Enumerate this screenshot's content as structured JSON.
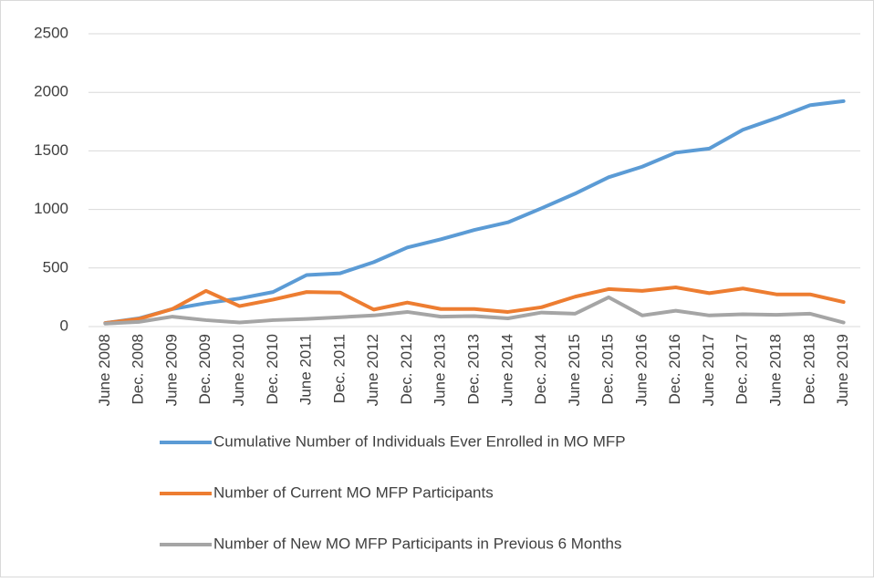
{
  "chart_data": {
    "type": "line",
    "categories": [
      "June 2008",
      "Dec. 2008",
      "June 2009",
      "Dec. 2009",
      "June 2010",
      "Dec. 2010",
      "June 2011",
      "Dec. 2011",
      "June 2012",
      "Dec. 2012",
      "June 2013",
      "Dec. 2013",
      "June 2014",
      "Dec. 2014",
      "June 2015",
      "Dec. 2015",
      "June 2016",
      "Dec. 2016",
      "June 2017",
      "Dec. 2017",
      "June 2018",
      "Dec. 2018",
      "June 2019"
    ],
    "series": [
      {
        "name": "Cumulative Number of Individuals Ever Enrolled in MO MFP",
        "color": "#5b9bd5",
        "values": [
          30,
          70,
          150,
          200,
          240,
          295,
          440,
          455,
          550,
          675,
          745,
          825,
          890,
          1010,
          1135,
          1275,
          1365,
          1485,
          1520,
          1680,
          1780,
          1890,
          1925
        ]
      },
      {
        "name": "Number of Current MO MFP Participants",
        "color": "#ed7d31",
        "values": [
          30,
          65,
          150,
          305,
          175,
          230,
          295,
          290,
          145,
          205,
          150,
          150,
          125,
          165,
          255,
          320,
          305,
          335,
          285,
          325,
          275,
          275,
          210
        ]
      },
      {
        "name": "Number of New MO MFP Participants in Previous 6 Months",
        "color": "#a5a5a5",
        "values": [
          25,
          40,
          85,
          55,
          35,
          55,
          65,
          80,
          95,
          125,
          85,
          90,
          70,
          120,
          110,
          250,
          95,
          135,
          95,
          105,
          100,
          110,
          35
        ]
      }
    ],
    "ylim": [
      0,
      2500
    ],
    "yticks": [
      0,
      500,
      1000,
      1500,
      2000,
      2500
    ],
    "grid": true,
    "legend": "bottom"
  }
}
